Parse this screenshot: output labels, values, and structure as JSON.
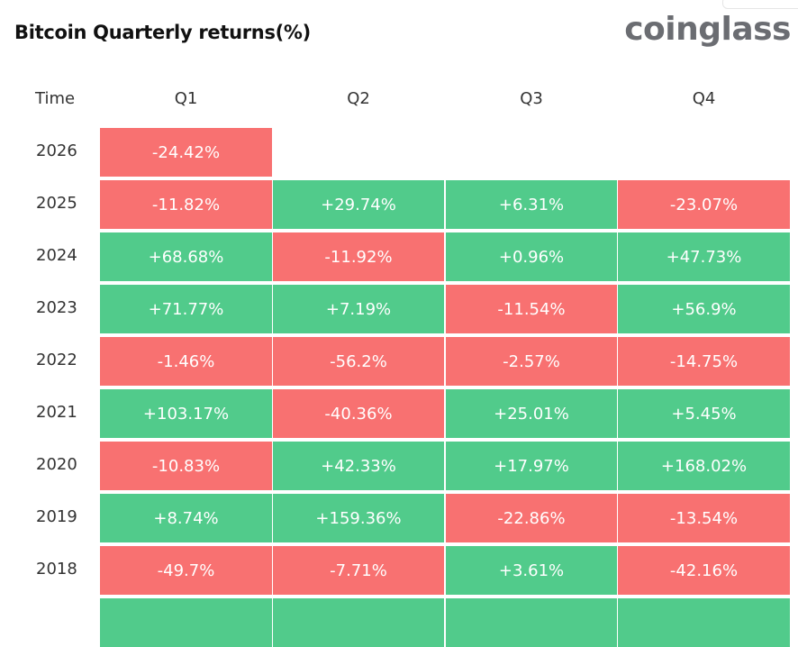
{
  "title": "Bitcoin Quarterly returns(%)",
  "logo": "coinglass",
  "colors": {
    "positive": "#51cb8b",
    "negative": "#f87171"
  },
  "chart_data": {
    "type": "table",
    "title": "Bitcoin Quarterly returns(%)",
    "columns": [
      "Time",
      "Q1",
      "Q2",
      "Q3",
      "Q4"
    ],
    "rows": [
      {
        "year": "2026",
        "values": [
          "-24.42%",
          null,
          null,
          null
        ]
      },
      {
        "year": "2025",
        "values": [
          "-11.82%",
          "+29.74%",
          "+6.31%",
          "-23.07%"
        ]
      },
      {
        "year": "2024",
        "values": [
          "+68.68%",
          "-11.92%",
          "+0.96%",
          "+47.73%"
        ]
      },
      {
        "year": "2023",
        "values": [
          "+71.77%",
          "+7.19%",
          "-11.54%",
          "+56.9%"
        ]
      },
      {
        "year": "2022",
        "values": [
          "-1.46%",
          "-56.2%",
          "-2.57%",
          "-14.75%"
        ]
      },
      {
        "year": "2021",
        "values": [
          "+103.17%",
          "-40.36%",
          "+25.01%",
          "+5.45%"
        ]
      },
      {
        "year": "2020",
        "values": [
          "-10.83%",
          "+42.33%",
          "+17.97%",
          "+168.02%"
        ]
      },
      {
        "year": "2019",
        "values": [
          "+8.74%",
          "+159.36%",
          "-22.86%",
          "-13.54%"
        ]
      },
      {
        "year": "2018",
        "values": [
          "-49.7%",
          "-7.71%",
          "+3.61%",
          "-42.16%"
        ]
      }
    ]
  }
}
